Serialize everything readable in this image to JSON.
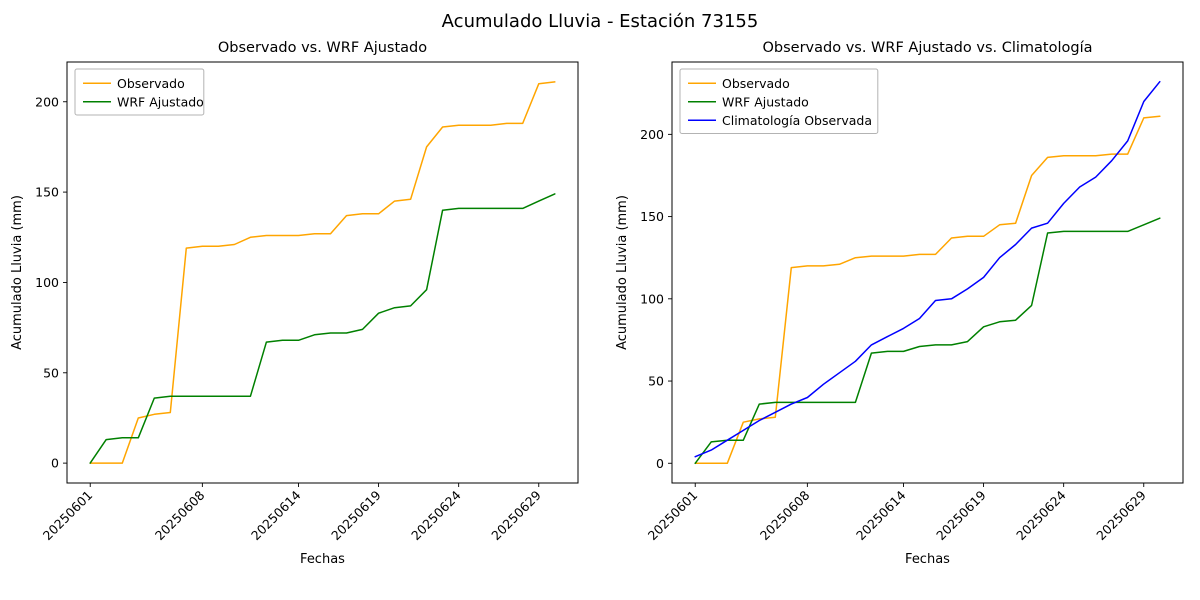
{
  "figure": {
    "title": "Acumulado Lluvia - Estación 73155",
    "background": "#ffffff"
  },
  "chart_data": [
    {
      "type": "line",
      "title": "Observado vs. WRF Ajustado",
      "xlabel": "Fechas",
      "ylabel": "Acumulado Lluvia (mm)",
      "grid": false,
      "legend_position": "upper-left",
      "x_dates": [
        "20250601",
        "20250602",
        "20250603",
        "20250604",
        "20250605",
        "20250606",
        "20250607",
        "20250608",
        "20250609",
        "20250610",
        "20250611",
        "20250612",
        "20250613",
        "20250614",
        "20250615",
        "20250616",
        "20250617",
        "20250618",
        "20250619",
        "20250620",
        "20250621",
        "20250622",
        "20250623",
        "20250624",
        "20250625",
        "20250626",
        "20250627",
        "20250628",
        "20250629",
        "20250630"
      ],
      "series": [
        {
          "name": "Observado",
          "color": "#ffa500",
          "values": [
            0,
            0,
            0,
            25,
            27,
            28,
            119,
            120,
            120,
            121,
            125,
            126,
            126,
            126,
            127,
            127,
            137,
            138,
            138,
            145,
            146,
            175,
            186,
            187,
            187,
            187,
            188,
            188,
            210,
            211
          ]
        },
        {
          "name": "WRF Ajustado",
          "color": "#008000",
          "values": [
            0,
            13,
            14,
            14,
            36,
            37,
            37,
            37,
            37,
            37,
            37,
            67,
            68,
            68,
            71,
            72,
            72,
            74,
            83,
            86,
            87,
            96,
            140,
            141,
            141,
            141,
            141,
            141,
            145,
            149
          ]
        }
      ],
      "xtick_labels": [
        "20250601",
        "20250608",
        "20250614",
        "20250619",
        "20250624",
        "20250629"
      ],
      "xtick_idx": [
        0,
        7,
        13,
        18,
        23,
        28
      ],
      "yticks": [
        0,
        50,
        100,
        150,
        200
      ],
      "xlim": [
        -1.45,
        30.45
      ],
      "ylim": [
        -11,
        222
      ]
    },
    {
      "type": "line",
      "title": "Observado vs. WRF Ajustado vs. Climatología",
      "xlabel": "Fechas",
      "ylabel": "Acumulado Lluvia (mm)",
      "grid": false,
      "legend_position": "upper-left",
      "x_dates": [
        "20250601",
        "20250602",
        "20250603",
        "20250604",
        "20250605",
        "20250606",
        "20250607",
        "20250608",
        "20250609",
        "20250610",
        "20250611",
        "20250612",
        "20250613",
        "20250614",
        "20250615",
        "20250616",
        "20250617",
        "20250618",
        "20250619",
        "20250620",
        "20250621",
        "20250622",
        "20250623",
        "20250624",
        "20250625",
        "20250626",
        "20250627",
        "20250628",
        "20250629",
        "20250630"
      ],
      "series": [
        {
          "name": "Observado",
          "color": "#ffa500",
          "values": [
            0,
            0,
            0,
            25,
            27,
            28,
            119,
            120,
            120,
            121,
            125,
            126,
            126,
            126,
            127,
            127,
            137,
            138,
            138,
            145,
            146,
            175,
            186,
            187,
            187,
            187,
            188,
            188,
            210,
            211
          ]
        },
        {
          "name": "WRF Ajustado",
          "color": "#008000",
          "values": [
            0,
            13,
            14,
            14,
            36,
            37,
            37,
            37,
            37,
            37,
            37,
            67,
            68,
            68,
            71,
            72,
            72,
            74,
            83,
            86,
            87,
            96,
            140,
            141,
            141,
            141,
            141,
            141,
            145,
            149
          ]
        },
        {
          "name": "Climatología Observada",
          "color": "#0000ff",
          "values": [
            4,
            8,
            14,
            20,
            26,
            31,
            36,
            40,
            48,
            55,
            62,
            72,
            77,
            82,
            88,
            99,
            100,
            106,
            113,
            125,
            133,
            143,
            146,
            158,
            168,
            174,
            184,
            196,
            220,
            232
          ]
        }
      ],
      "xtick_labels": [
        "20250601",
        "20250608",
        "20250614",
        "20250619",
        "20250624",
        "20250629"
      ],
      "xtick_idx": [
        0,
        7,
        13,
        18,
        23,
        28
      ],
      "yticks": [
        0,
        50,
        100,
        150,
        200
      ],
      "xlim": [
        -1.45,
        30.45
      ],
      "ylim": [
        -12,
        244
      ]
    }
  ]
}
